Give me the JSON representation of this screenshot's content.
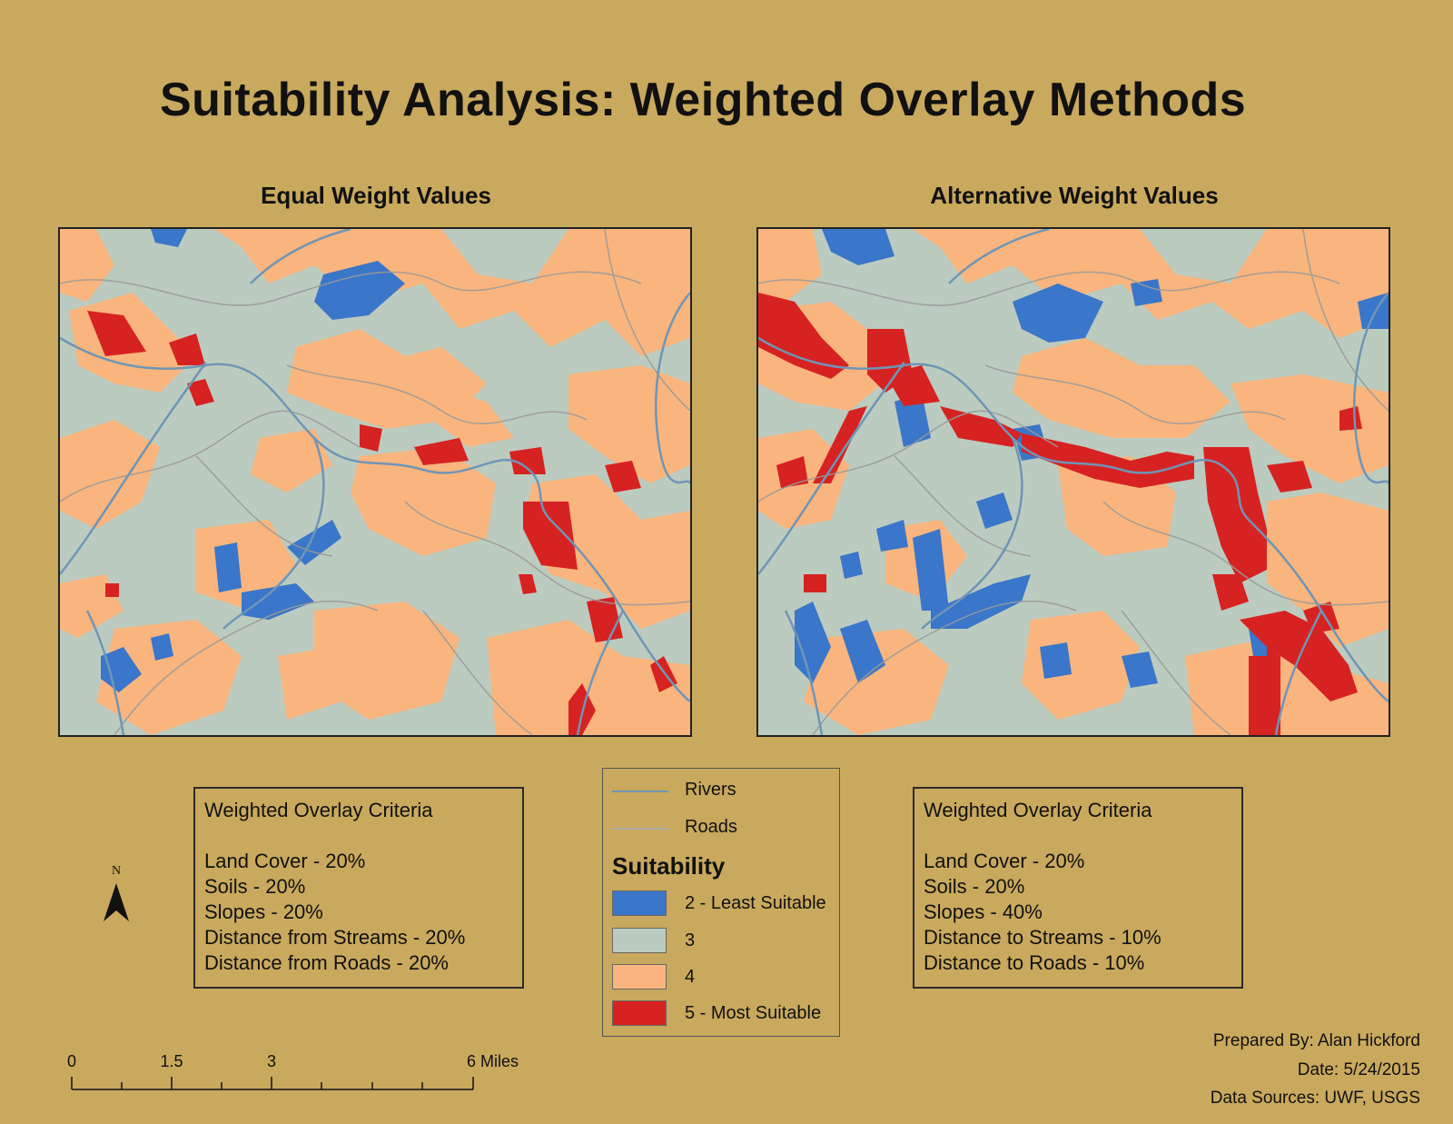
{
  "title": "Suitability Analysis: Weighted Overlay Methods",
  "maps": {
    "left_title": "Equal Weight Values",
    "right_title": "Alternative Weight Values"
  },
  "criteria_left": {
    "heading": "Weighted Overlay Criteria",
    "items": [
      "Land Cover - 20%",
      "Soils - 20%",
      "Slopes - 20%",
      "Distance from Streams - 20%",
      "Distance from Roads - 20%"
    ]
  },
  "criteria_right": {
    "heading": "Weighted Overlay Criteria",
    "items": [
      "Land Cover - 20%",
      "Soils - 20%",
      "Slopes - 40%",
      "Distance to Streams - 10%",
      "Distance to Roads - 10%"
    ]
  },
  "legend": {
    "rivers_label": "Rivers",
    "roads_label": "Roads",
    "heading": "Suitability",
    "classes": [
      {
        "label": "2 - Least Suitable",
        "color": "#3a76c9"
      },
      {
        "label": "3",
        "color": "#bccbbf"
      },
      {
        "label": "4",
        "color": "#f9b57d"
      },
      {
        "label": "5 - Most Suitable",
        "color": "#d72222"
      }
    ],
    "rivers_color": "#6f95b7",
    "roads_color": "#9a9a9a"
  },
  "north_arrow": {
    "label": "N"
  },
  "scale_bar": {
    "ticks": [
      "0",
      "1.5",
      "3",
      "6 Miles"
    ]
  },
  "credits": {
    "prepared_by": "Prepared By: Alan Hickford",
    "date": "Date: 5/24/2015",
    "sources": "Data Sources: UWF, USGS"
  }
}
